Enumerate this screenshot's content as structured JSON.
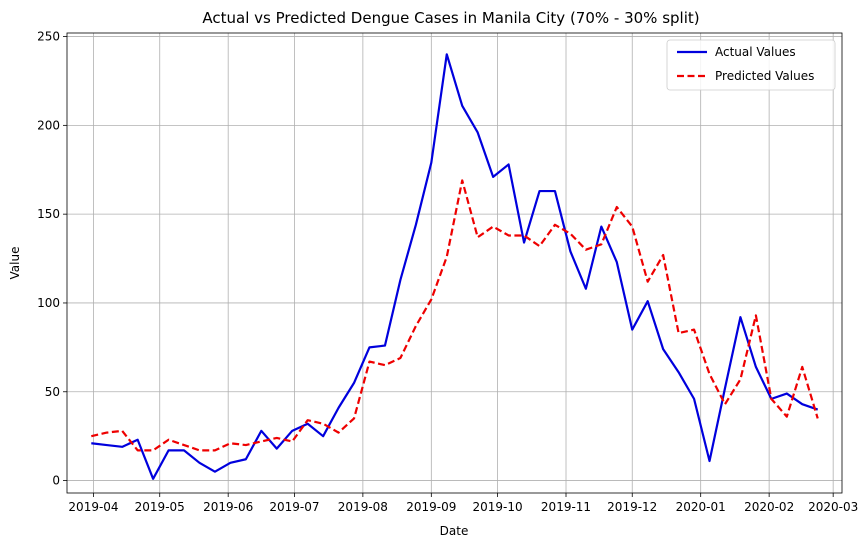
{
  "chart_data": {
    "type": "line",
    "title": "Actual vs Predicted Dengue Cases in Manila City (70% - 30% split)",
    "xlabel": "Date",
    "ylabel": "Value",
    "xlim": [
      "2019-03-20",
      "2020-03-05"
    ],
    "ylim": [
      -7,
      252
    ],
    "grid": true,
    "legend_position": "top-right",
    "x_ticks": [
      "2019-04-01",
      "2019-05-01",
      "2019-06-01",
      "2019-07-01",
      "2019-08-01",
      "2019-09-01",
      "2019-10-01",
      "2019-11-01",
      "2019-12-01",
      "2020-01-01",
      "2020-02-01",
      "2020-03-01"
    ],
    "x_tick_labels": [
      "2019-04",
      "2019-05",
      "2019-06",
      "2019-07",
      "2019-08",
      "2019-09",
      "2019-10",
      "2019-11",
      "2019-12",
      "2020-01",
      "2020-02",
      "2020-03"
    ],
    "y_ticks": [
      0,
      50,
      100,
      150,
      200,
      250
    ],
    "y_tick_labels": [
      "0",
      "50",
      "100",
      "150",
      "200",
      "250"
    ],
    "x": [
      "2019-03-31",
      "2019-04-07",
      "2019-04-14",
      "2019-04-21",
      "2019-04-28",
      "2019-05-05",
      "2019-05-12",
      "2019-05-19",
      "2019-05-26",
      "2019-06-02",
      "2019-06-09",
      "2019-06-16",
      "2019-06-23",
      "2019-06-30",
      "2019-07-07",
      "2019-07-14",
      "2019-07-21",
      "2019-07-28",
      "2019-08-04",
      "2019-08-11",
      "2019-08-18",
      "2019-08-25",
      "2019-09-01",
      "2019-09-08",
      "2019-09-15",
      "2019-09-22",
      "2019-09-29",
      "2019-10-06",
      "2019-10-13",
      "2019-10-20",
      "2019-10-27",
      "2019-11-03",
      "2019-11-10",
      "2019-11-17",
      "2019-11-24",
      "2019-12-01",
      "2019-12-08",
      "2019-12-15",
      "2019-12-22",
      "2019-12-29",
      "2020-01-05",
      "2020-01-12",
      "2020-01-19",
      "2020-01-26",
      "2020-02-02",
      "2020-02-09",
      "2020-02-16",
      "2020-02-23"
    ],
    "series": [
      {
        "name": "Actual Values",
        "color": "#0000dd",
        "style": "solid",
        "values": [
          21,
          20,
          19,
          23,
          1,
          17,
          17,
          10,
          5,
          10,
          12,
          28,
          18,
          28,
          32,
          25,
          41,
          55,
          75,
          76,
          113,
          144,
          179,
          240,
          211,
          196,
          171,
          178,
          134,
          163,
          163,
          129,
          108,
          143,
          123,
          85,
          101,
          74,
          61,
          46,
          11,
          52,
          92,
          64,
          46,
          49,
          43,
          40
        ]
      },
      {
        "name": "Predicted Values",
        "color": "#ee0000",
        "style": "dashed",
        "values": [
          25,
          27,
          28,
          17,
          17,
          23,
          20,
          17,
          17,
          21,
          20,
          22,
          24,
          22,
          34,
          32,
          27,
          35,
          67,
          65,
          69,
          87,
          102,
          126,
          169,
          137,
          143,
          138,
          138,
          132,
          144,
          139,
          130,
          133,
          154,
          143,
          112,
          127,
          83,
          85,
          60,
          43,
          57,
          93,
          46,
          36,
          64,
          35
        ]
      }
    ]
  }
}
